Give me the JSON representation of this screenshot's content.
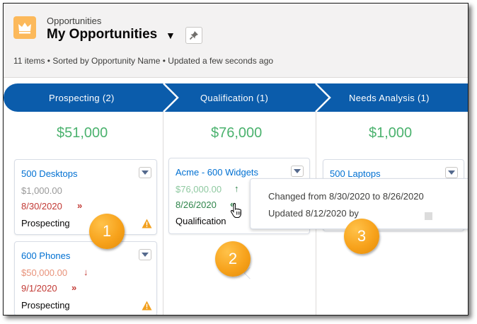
{
  "header": {
    "object_label": "Opportunities",
    "list_title": "My Opportunities",
    "subtitle": "11 items • Sorted by Opportunity Name • Updated a few seconds ago",
    "icon": "crown-icon",
    "brand_color": "#fcb95b"
  },
  "stages": [
    {
      "label": "Prospecting   (2)",
      "total": "$51,000"
    },
    {
      "label": "Qualification   (1)",
      "total": "$76,000"
    },
    {
      "label": "Needs Analysis   (1)",
      "total": "$1,000"
    }
  ],
  "cards": {
    "c1": {
      "name": "500 Desktops",
      "amount": "$1,000.00",
      "close_date": "8/30/2020",
      "stage": "Prospecting"
    },
    "c2": {
      "name": "600 Phones",
      "amount": "$50,000.00",
      "close_date": "9/1/2020",
      "stage": "Prospecting"
    },
    "c3": {
      "name": "Acme - 600 Widgets",
      "amount": "$76,000.00",
      "close_date": "8/26/2020",
      "stage": "Qualification"
    },
    "c4": {
      "name": "500 Laptops"
    }
  },
  "tooltip": {
    "line1": "Changed from 8/30/2020 to 8/26/2020",
    "line2": "Updated 8/12/2020 by"
  },
  "callouts": [
    "1",
    "2",
    "3"
  ],
  "colors": {
    "stage_path": "#0b5cab",
    "amount_total": "#4bb26e",
    "link": "#0070d2",
    "overdue": "#c23934",
    "improved": "#2e844a",
    "warning": "#f2a01e",
    "callout": "#f7a21b"
  }
}
